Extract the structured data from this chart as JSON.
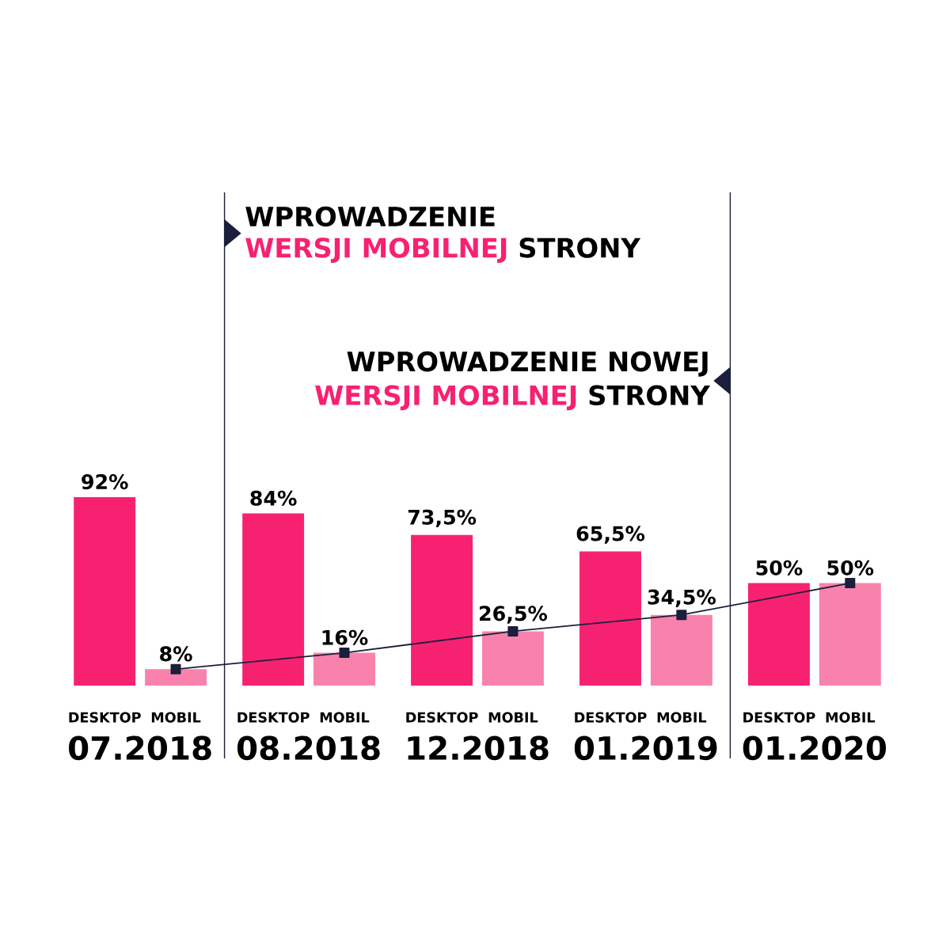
{
  "chart_data": {
    "type": "bar",
    "categories": [
      "07.2018",
      "08.2018",
      "12.2018",
      "01.2019",
      "01.2020"
    ],
    "series": [
      {
        "name": "DESKTOP",
        "color": "#f72172",
        "values": [
          92,
          84,
          73.5,
          65.5,
          50
        ],
        "value_labels": [
          "92%",
          "84%",
          "73,5%",
          "65,5%",
          "50%"
        ]
      },
      {
        "name": "MOBIL",
        "color": "#f982ad",
        "values": [
          8,
          16,
          26.5,
          34.5,
          50
        ],
        "value_labels": [
          "8%",
          "16%",
          "26,5%",
          "34,5%",
          "50%"
        ]
      },
      {
        "type": "line",
        "color": "#1b1f3b",
        "values": [
          8,
          16,
          26.5,
          34.5,
          50
        ]
      }
    ],
    "marker": "square",
    "annotations": [
      "WPROWADZENIE",
      "**WERSJI MOBILNEJ** STRONY",
      "WPROWADZENIE NOWEJ",
      "**WERSJI MOBILNEJ** STRONY"
    ]
  }
}
